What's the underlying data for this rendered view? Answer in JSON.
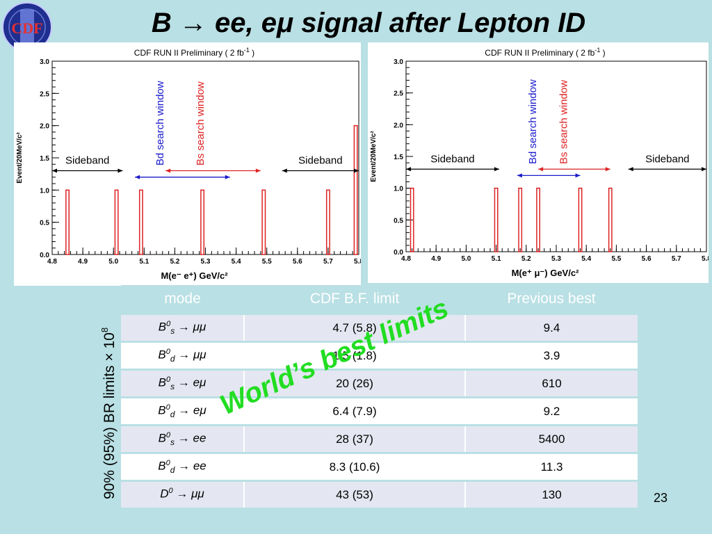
{
  "title": "B → ee, eμ signal after Lepton ID",
  "logo": {
    "text": "CDF",
    "icon": "cdf-logo-icon"
  },
  "colors": {
    "background": "#b9e0e4",
    "histogram": "#dd2222",
    "bd_arrow": "#1a1acc",
    "bs_arrow": "#dd2222",
    "stamp": "#22dd22"
  },
  "chart_data": [
    {
      "type": "bar",
      "title": "CDF RUN II Preliminary  ( 2 fb",
      "title_sup": "-1",
      "title_end": " )",
      "xlabel": "M(e⁻ e⁺)    GeV/c²",
      "ylabel": "Event/20MeV/c²",
      "xlim": [
        4.8,
        5.8
      ],
      "ylim": [
        0.0,
        3.0
      ],
      "xticks": [
        "4.8",
        "4.9",
        "5.0",
        "5.1",
        "5.2",
        "5.3",
        "5.4",
        "5.5",
        "5.6",
        "5.7",
        "5.8"
      ],
      "yticks": [
        "0.0",
        "0.5",
        "1.0",
        "1.5",
        "2.0",
        "2.5",
        "3.0"
      ],
      "bin_width": 0.01,
      "bins": [
        {
          "x": 4.85,
          "y": 1
        },
        {
          "x": 5.01,
          "y": 1
        },
        {
          "x": 5.09,
          "y": 1
        },
        {
          "x": 5.29,
          "y": 1
        },
        {
          "x": 5.49,
          "y": 1
        },
        {
          "x": 5.7,
          "y": 1
        },
        {
          "x": 5.79,
          "y": 2
        }
      ],
      "annotations": {
        "sideband_left": {
          "label": "Sideband",
          "from": 4.8,
          "to": 5.03
        },
        "sideband_right": {
          "label": "Sideband",
          "from": 5.55,
          "to": 5.8
        },
        "bd_window": {
          "label": "Bd search window",
          "from": 5.07,
          "to": 5.38
        },
        "bs_window": {
          "label": "Bs search window",
          "from": 5.17,
          "to": 5.48
        }
      }
    },
    {
      "type": "bar",
      "title": "CDF RUN II Preliminary  ( 2 fb",
      "title_sup": "-1",
      "title_end": " )",
      "xlabel": "M(e⁺ μ⁻)    GeV/c²",
      "ylabel": "Event/20MeV/c²",
      "xlim": [
        4.8,
        5.8
      ],
      "ylim": [
        0.0,
        3.0
      ],
      "xticks": [
        "4.8",
        "4.9",
        "5.0",
        "5.1",
        "5.2",
        "5.3",
        "5.4",
        "5.5",
        "5.6",
        "5.7",
        "5.8"
      ],
      "yticks": [
        "0.0",
        "0.5",
        "1.0",
        "1.5",
        "2.0",
        "2.5",
        "3.0"
      ],
      "bin_width": 0.01,
      "bins": [
        {
          "x": 4.82,
          "y": 1
        },
        {
          "x": 5.1,
          "y": 1
        },
        {
          "x": 5.18,
          "y": 1
        },
        {
          "x": 5.24,
          "y": 1
        },
        {
          "x": 5.38,
          "y": 1
        },
        {
          "x": 5.48,
          "y": 1
        }
      ],
      "annotations": {
        "sideband_left": {
          "label": "Sideband",
          "from": 4.8,
          "to": 5.11
        },
        "sideband_right": {
          "label": "Sideband",
          "from": 5.54,
          "to": 5.8
        },
        "bd_window": {
          "label": "Bd search window",
          "from": 5.17,
          "to": 5.38
        },
        "bs_window": {
          "label": "Bs search window",
          "from": 5.24,
          "to": 5.48
        }
      }
    }
  ],
  "table": {
    "side_label": "90% (95%) BR limits × 10",
    "side_label_exp": "8",
    "headers": [
      "mode",
      "CDF B.F. limit",
      "Previous best"
    ],
    "rows": [
      {
        "b": "B",
        "sup": "0",
        "sub": "s",
        "arrow": " → ",
        "final": "μμ",
        "limit": "4.7 (5.8)",
        "prev": "9.4"
      },
      {
        "b": "B",
        "sup": "0",
        "sub": "d",
        "arrow": " → ",
        "final": "μμ",
        "limit": "1.5 (1.8)",
        "prev": "3.9"
      },
      {
        "b": "B",
        "sup": "0",
        "sub": "s",
        "arrow": " → ",
        "final": "eμ",
        "limit": "20 (26)",
        "prev": "610"
      },
      {
        "b": "B",
        "sup": "0",
        "sub": "d",
        "arrow": " → ",
        "final": "eμ",
        "limit": "6.4 (7.9)",
        "prev": "9.2"
      },
      {
        "b": "B",
        "sup": "0",
        "sub": "s",
        "arrow": " → ",
        "final": "ee",
        "limit": "28 (37)",
        "prev": "5400"
      },
      {
        "b": "B",
        "sup": "0",
        "sub": "d",
        "arrow": " → ",
        "final": "ee",
        "limit": "8.3 (10.6)",
        "prev": "11.3"
      },
      {
        "b": "D",
        "sup": "0",
        "sub": "",
        "arrow": " → ",
        "final": "μμ",
        "limit": "43 (53)",
        "prev": "130"
      }
    ]
  },
  "stamp": "World’s best limits",
  "page_number": "23"
}
